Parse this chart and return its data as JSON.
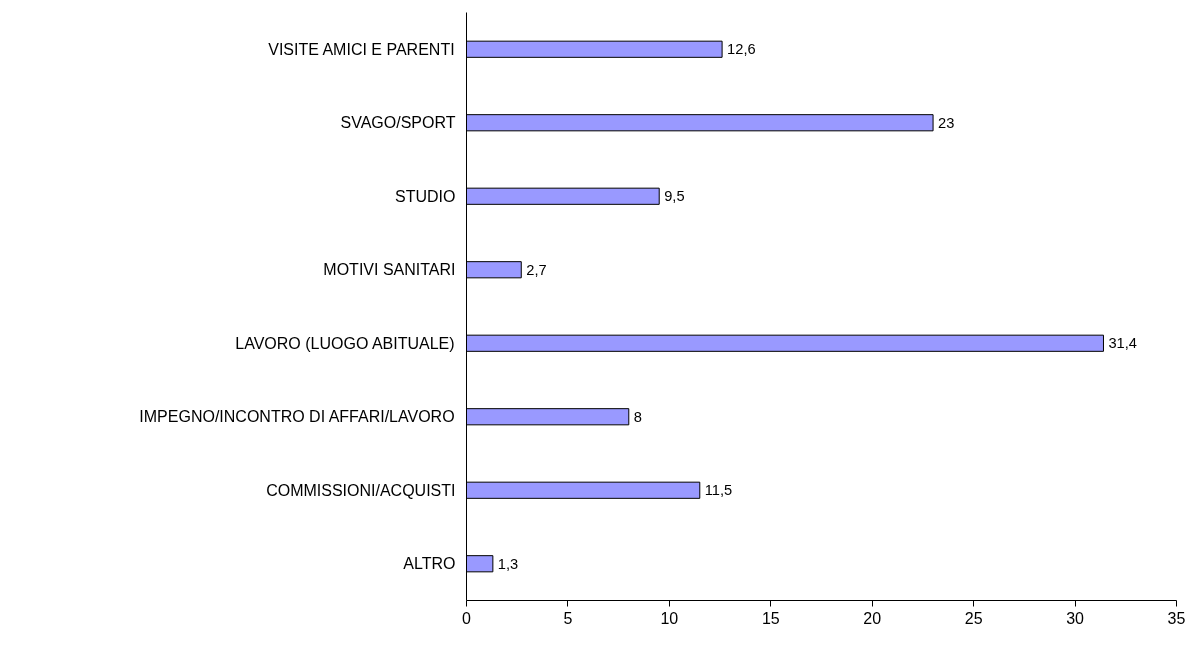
{
  "chart_data": {
    "type": "bar",
    "orientation": "horizontal",
    "categories": [
      "VISITE AMICI E PARENTI",
      "SVAGO/SPORT",
      "STUDIO",
      "MOTIVI SANITARI",
      "LAVORO (LUOGO ABITUALE)",
      "IMPEGNO/INCONTRO DI AFFARI/LAVORO",
      "COMMISSIONI/ACQUISTI",
      "ALTRO"
    ],
    "values": [
      12.6,
      23,
      9.5,
      2.7,
      31.4,
      8,
      11.5,
      1.3
    ],
    "value_labels": [
      "12,6",
      "23",
      "9,5",
      "2,7",
      "31,4",
      "8",
      "11,5",
      "1,3"
    ],
    "color": "#9999ff",
    "xlim": [
      0,
      35
    ],
    "xticks": [
      0,
      5,
      10,
      15,
      20,
      25,
      30,
      35
    ],
    "grid": false
  }
}
